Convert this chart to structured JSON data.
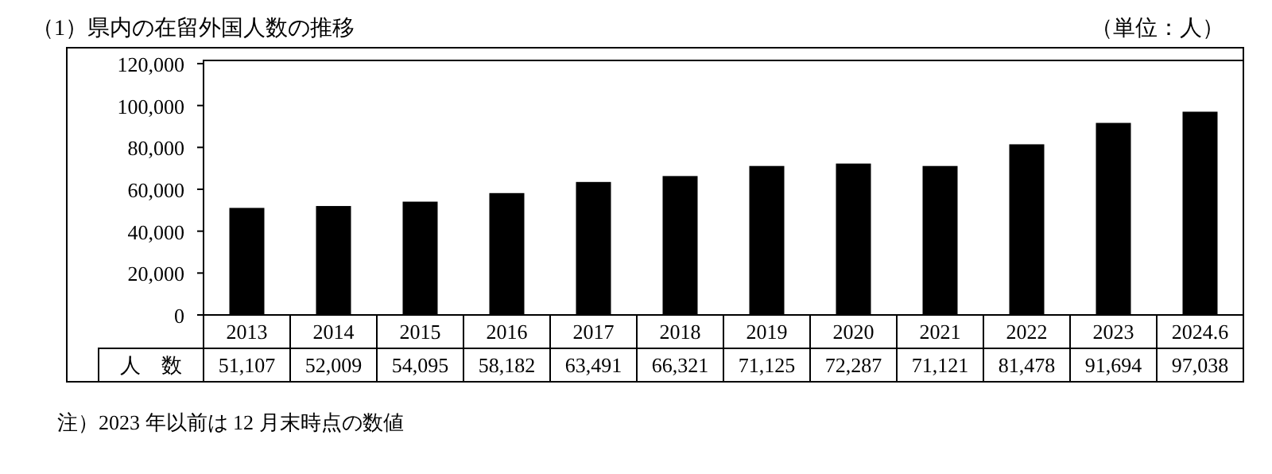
{
  "chart_data": {
    "type": "bar",
    "title": "（1）県内の在留外国人数の推移",
    "subtitle": "（単位：人）",
    "categories": [
      "2013",
      "2014",
      "2015",
      "2016",
      "2017",
      "2018",
      "2019",
      "2020",
      "2021",
      "2022",
      "2023",
      "2024.6"
    ],
    "values": [
      51107,
      52009,
      54095,
      58182,
      63491,
      66321,
      71125,
      72287,
      71121,
      81478,
      91694,
      97038
    ],
    "value_labels": [
      "51,107",
      "52,009",
      "54,095",
      "58,182",
      "63,491",
      "66,321",
      "71,125",
      "72,287",
      "71,121",
      "81,478",
      "91,694",
      "97,038"
    ],
    "color": "#000000",
    "ylim": [
      0,
      120000
    ],
    "yticks": [
      0,
      {
        "value": 20000,
        "label": "20,000"
      },
      {
        "value": 40000,
        "label": "40,000"
      },
      {
        "value": 60000,
        "label": "60,000"
      },
      {
        "value": 80000,
        "label": "80,000"
      },
      {
        "value": 100000,
        "label": "100,000"
      },
      {
        "value": 120000,
        "label": "120,000"
      }
    ],
    "grid": false,
    "annotations": [
      "人　数",
      "注）2023 年以前は 12 月末時点の数値"
    ]
  }
}
